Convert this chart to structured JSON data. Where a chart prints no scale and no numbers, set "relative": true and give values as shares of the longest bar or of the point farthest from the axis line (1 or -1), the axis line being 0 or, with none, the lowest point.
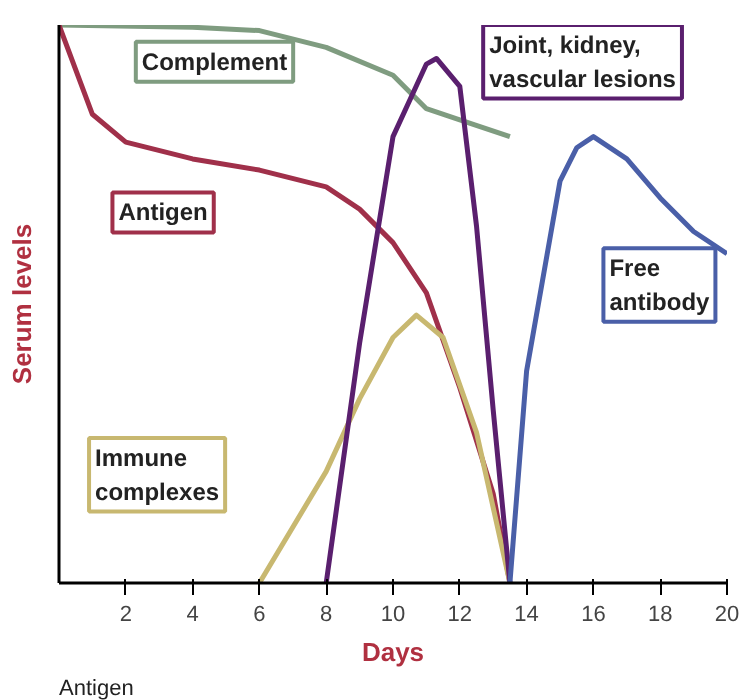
{
  "chart_data": {
    "type": "line",
    "relative": true,
    "xlabel": "Days",
    "ylabel": "Serum levels",
    "xlim": [
      0,
      20
    ],
    "xticks": [
      2,
      4,
      6,
      8,
      10,
      12,
      14,
      16,
      18,
      20
    ],
    "grid": false,
    "series": [
      {
        "name": "Complement",
        "color": "#7f9c80",
        "x": [
          0,
          4,
          6,
          8,
          10,
          11,
          12,
          13.5
        ],
        "values": [
          1.0,
          0.996,
          0.99,
          0.96,
          0.91,
          0.85,
          0.83,
          0.8
        ]
      },
      {
        "name": "Antigen",
        "color": "#a0304a",
        "x": [
          0,
          1,
          2,
          4,
          6,
          8,
          9,
          10,
          11,
          12,
          13,
          13.5
        ],
        "values": [
          1.0,
          0.84,
          0.79,
          0.76,
          0.74,
          0.71,
          0.67,
          0.61,
          0.52,
          0.35,
          0.16,
          0
        ]
      },
      {
        "name": "Immune\ncomplexes",
        "color": "#c8b870",
        "x": [
          6,
          8,
          9,
          10,
          10.7,
          11.5,
          12.5,
          13.5
        ],
        "values": [
          0,
          0.2,
          0.33,
          0.44,
          0.48,
          0.44,
          0.27,
          0
        ]
      },
      {
        "name": "Joint, kidney,\nvascular lesions",
        "color": "#5a1f6e",
        "x": [
          8,
          9,
          10,
          11,
          11.3,
          12,
          12.5,
          13,
          13.5
        ],
        "values": [
          0,
          0.43,
          0.8,
          0.93,
          0.94,
          0.89,
          0.64,
          0.31,
          0
        ]
      },
      {
        "name": "Free\nantibody",
        "color": "#4a5fa8",
        "x": [
          13.5,
          14,
          15,
          15.5,
          16,
          17,
          18,
          19,
          20
        ],
        "values": [
          0,
          0.38,
          0.72,
          0.78,
          0.8,
          0.76,
          0.69,
          0.63,
          0.59
        ]
      }
    ],
    "annotations": [
      "Antigen"
    ]
  }
}
